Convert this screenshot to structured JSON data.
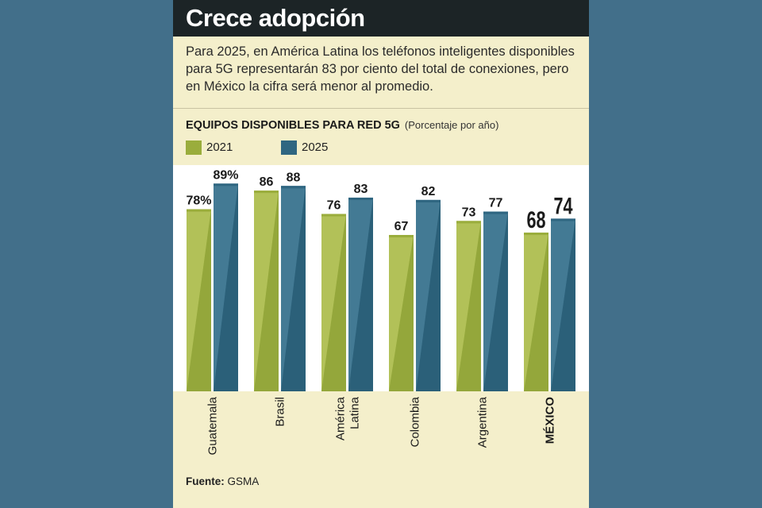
{
  "title": "Crece adopción",
  "intro": "Para 2025, en América Latina los teléfonos inteligentes disponibles para 5G representarán 83 por ciento del total de conexiones, pero en México la cifra será menor al promedio.",
  "colors": {
    "background": "#426f8a",
    "card": "#f4efcb",
    "title_bar": "#1c2426",
    "series_2021": "#9aad3c",
    "series_2025": "#2f6681"
  },
  "chart_data": {
    "type": "bar",
    "title": "EQUIPOS DISPONIBLES  PARA RED 5G",
    "subtitle": "(Porcentaje por año)",
    "categories": [
      "Guatemala",
      "Brasil",
      "América Latina",
      "Colombia",
      "Argentina",
      "MÉXICO"
    ],
    "category_lines": [
      [
        "Guatemala"
      ],
      [
        "Brasil"
      ],
      [
        "América",
        "Latina"
      ],
      [
        "Colombia"
      ],
      [
        "Argentina"
      ],
      [
        "MÉXICO"
      ]
    ],
    "series": [
      {
        "name": "2021",
        "values": [
          78,
          86,
          76,
          67,
          73,
          68
        ],
        "labels": [
          "78%",
          "86",
          "76",
          "67",
          "73",
          "68"
        ]
      },
      {
        "name": "2025",
        "values": [
          89,
          88,
          83,
          82,
          77,
          74
        ],
        "labels": [
          "89%",
          "88",
          "83",
          "82",
          "77",
          "74"
        ]
      }
    ],
    "emphasized_category": "MÉXICO",
    "ylim": [
      0,
      100
    ],
    "grid": false,
    "legend_position": "top-left"
  },
  "source": {
    "label": "Fuente:",
    "value": "GSMA"
  }
}
